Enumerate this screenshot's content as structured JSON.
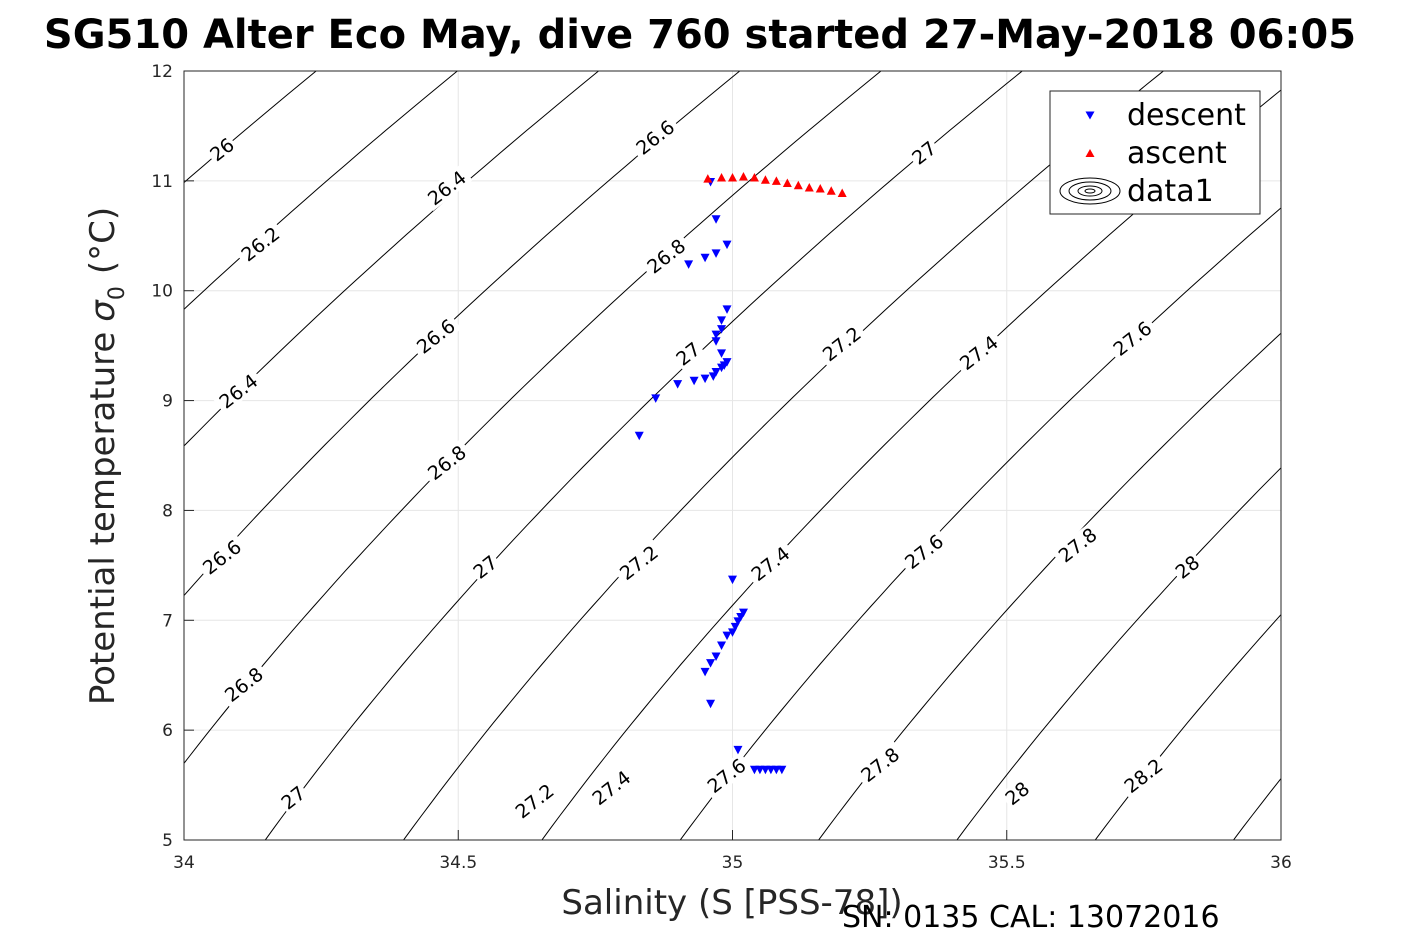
{
  "title": "SG510 Alter Eco May, dive 760 started 27-May-2018 06:05",
  "footer": "SN: 0135  CAL: 13072016",
  "chart_data": {
    "type": "scatter",
    "xlabel": "Salinity (S [PSS-78])",
    "ylabel": "Potential temperature",
    "ylabel_symbol": "σ",
    "ylabel_subscript": "0",
    "ylabel_unit": "(°C)",
    "xlim": [
      34,
      36
    ],
    "ylim": [
      5,
      12
    ],
    "xticks": [
      "34",
      "34.5",
      "35",
      "35.5",
      "36"
    ],
    "yticks": [
      "5",
      "6",
      "7",
      "8",
      "9",
      "10",
      "11",
      "12"
    ],
    "grid": true,
    "legend_position": "top-right",
    "legend": [
      {
        "label": "descent",
        "marker": "triangle-down",
        "color": "#0000ff"
      },
      {
        "label": "ascent",
        "marker": "triangle-up",
        "color": "#ff0000"
      },
      {
        "label": "data1",
        "marker": "contour",
        "color": "#000000"
      }
    ],
    "colors": {
      "descent": "#0000ff",
      "ascent": "#ff0000",
      "contour": "#000000",
      "grid": "#e6e6e6"
    },
    "series": [
      {
        "name": "descent",
        "points": [
          [
            34.96,
            10.99
          ],
          [
            34.97,
            10.65
          ],
          [
            34.99,
            10.42
          ],
          [
            34.97,
            10.34
          ],
          [
            34.95,
            10.3
          ],
          [
            34.92,
            10.24
          ],
          [
            34.99,
            9.83
          ],
          [
            34.98,
            9.73
          ],
          [
            34.98,
            9.65
          ],
          [
            34.97,
            9.6
          ],
          [
            34.97,
            9.54
          ],
          [
            34.98,
            9.43
          ],
          [
            34.99,
            9.35
          ],
          [
            34.985,
            9.32
          ],
          [
            34.98,
            9.3
          ],
          [
            34.97,
            9.26
          ],
          [
            34.965,
            9.22
          ],
          [
            34.95,
            9.2
          ],
          [
            34.93,
            9.18
          ],
          [
            34.9,
            9.15
          ],
          [
            34.86,
            9.02
          ],
          [
            34.83,
            8.68
          ],
          [
            35.0,
            7.37
          ],
          [
            35.02,
            7.07
          ],
          [
            35.015,
            7.03
          ],
          [
            35.01,
            6.99
          ],
          [
            35.005,
            6.94
          ],
          [
            35.0,
            6.89
          ],
          [
            34.99,
            6.86
          ],
          [
            34.98,
            6.77
          ],
          [
            34.97,
            6.67
          ],
          [
            34.96,
            6.61
          ],
          [
            34.95,
            6.53
          ],
          [
            34.96,
            6.24
          ],
          [
            35.01,
            5.82
          ],
          [
            35.04,
            5.64
          ],
          [
            35.05,
            5.64
          ],
          [
            35.06,
            5.64
          ],
          [
            35.07,
            5.64
          ],
          [
            35.08,
            5.64
          ],
          [
            35.09,
            5.64
          ]
        ]
      },
      {
        "name": "ascent",
        "points": [
          [
            34.955,
            11.02
          ],
          [
            34.98,
            11.03
          ],
          [
            35.0,
            11.03
          ],
          [
            35.02,
            11.04
          ],
          [
            35.04,
            11.03
          ],
          [
            35.06,
            11.01
          ],
          [
            35.08,
            11.0
          ],
          [
            35.1,
            10.98
          ],
          [
            35.12,
            10.96
          ],
          [
            35.14,
            10.94
          ],
          [
            35.16,
            10.93
          ],
          [
            35.18,
            10.91
          ],
          [
            35.2,
            10.89
          ]
        ]
      }
    ],
    "contour_labels": [
      {
        "level": "26",
        "s": 34.07,
        "t": 11.28
      },
      {
        "level": "26.2",
        "s": 34.14,
        "t": 10.42
      },
      {
        "level": "26.4",
        "s": 34.1,
        "t": 9.08
      },
      {
        "level": "26.6",
        "s": 34.07,
        "t": 7.57
      },
      {
        "level": "26.8",
        "s": 34.11,
        "t": 6.41
      },
      {
        "level": "27",
        "s": 34.2,
        "t": 5.38
      },
      {
        "level": "26.4",
        "s": 34.48,
        "t": 10.93
      },
      {
        "level": "26.6",
        "s": 34.46,
        "t": 9.58
      },
      {
        "level": "26.8",
        "s": 34.48,
        "t": 8.43
      },
      {
        "level": "27",
        "s": 34.55,
        "t": 7.48
      },
      {
        "level": "27.2",
        "s": 34.64,
        "t": 5.35
      },
      {
        "level": "26.6",
        "s": 34.86,
        "t": 11.39
      },
      {
        "level": "26.8",
        "s": 34.88,
        "t": 10.31
      },
      {
        "level": "27",
        "s": 34.92,
        "t": 9.42
      },
      {
        "level": "27.2",
        "s": 34.83,
        "t": 7.52
      },
      {
        "level": "27.4",
        "s": 34.78,
        "t": 5.47
      },
      {
        "level": "27",
        "s": 35.35,
        "t": 11.25
      },
      {
        "level": "27.2",
        "s": 35.2,
        "t": 9.51
      },
      {
        "level": "27.4",
        "s": 35.07,
        "t": 7.51
      },
      {
        "level": "27.6",
        "s": 34.99,
        "t": 5.58
      },
      {
        "level": "27.4",
        "s": 35.45,
        "t": 9.43
      },
      {
        "level": "27.6",
        "s": 35.35,
        "t": 7.62
      },
      {
        "level": "27.8",
        "s": 35.27,
        "t": 5.68
      },
      {
        "level": "27.6",
        "s": 35.73,
        "t": 9.56
      },
      {
        "level": "27.8",
        "s": 35.63,
        "t": 7.68
      },
      {
        "level": "28",
        "s": 35.52,
        "t": 5.42
      },
      {
        "level": "28",
        "s": 35.83,
        "t": 7.48
      },
      {
        "level": "28.2",
        "s": 35.75,
        "t": 5.58
      }
    ]
  }
}
